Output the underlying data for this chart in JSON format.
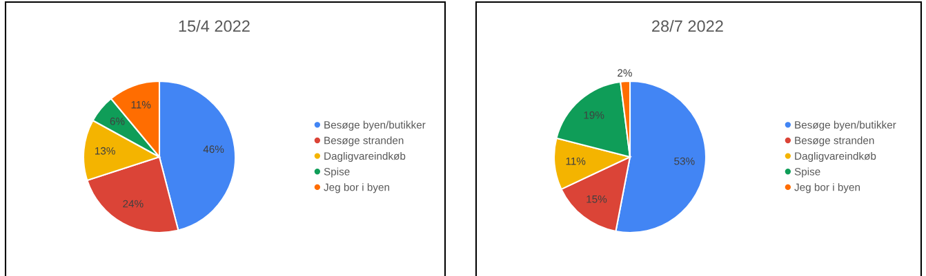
{
  "chart_data": [
    {
      "type": "pie",
      "title": "15/4 2022",
      "categories": [
        "Besøge byen/butikker",
        "Besøge stranden",
        "Dagligvareindkøb",
        "Spise",
        "Jeg bor i byen"
      ],
      "values": [
        46,
        24,
        13,
        6,
        11
      ],
      "value_labels": [
        "46%",
        "24%",
        "13%",
        "6%",
        "11%"
      ],
      "colors": [
        "#4285f4",
        "#db4437",
        "#f4b400",
        "#0f9d58",
        "#ff6d01"
      ],
      "legend": "right"
    },
    {
      "type": "pie",
      "title": "28/7 2022",
      "categories": [
        "Besøge byen/butikker",
        "Besøge stranden",
        "Dagligvareindkøb",
        "Spise",
        "Jeg bor i byen"
      ],
      "values": [
        53,
        15,
        11,
        19,
        2
      ],
      "value_labels": [
        "53%",
        "15%",
        "11%",
        "19%",
        "2%"
      ],
      "colors": [
        "#4285f4",
        "#db4437",
        "#f4b400",
        "#0f9d58",
        "#ff6d01"
      ],
      "legend": "right"
    }
  ]
}
